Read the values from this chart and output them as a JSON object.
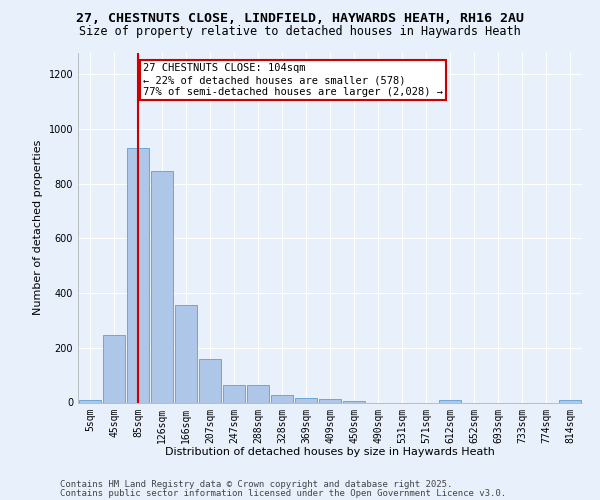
{
  "title1": "27, CHESTNUTS CLOSE, LINDFIELD, HAYWARDS HEATH, RH16 2AU",
  "title2": "Size of property relative to detached houses in Haywards Heath",
  "xlabel": "Distribution of detached houses by size in Haywards Heath",
  "ylabel": "Number of detached properties",
  "bin_labels": [
    "5sqm",
    "45sqm",
    "85sqm",
    "126sqm",
    "166sqm",
    "207sqm",
    "247sqm",
    "288sqm",
    "328sqm",
    "369sqm",
    "409sqm",
    "450sqm",
    "490sqm",
    "531sqm",
    "571sqm",
    "612sqm",
    "652sqm",
    "693sqm",
    "733sqm",
    "774sqm",
    "814sqm"
  ],
  "bar_heights": [
    8,
    248,
    930,
    848,
    358,
    158,
    65,
    65,
    28,
    15,
    12,
    5,
    0,
    0,
    0,
    8,
    0,
    0,
    0,
    0,
    8
  ],
  "bar_color": "#aec6e8",
  "bar_edge_color": "#5a9fd4",
  "red_line_x": 2,
  "annotation_line1": "27 CHESTNUTS CLOSE: 104sqm",
  "annotation_line2": "← 22% of detached houses are smaller (578)",
  "annotation_line3": "77% of semi-detached houses are larger (2,028) →",
  "annotation_box_color": "#ffffff",
  "annotation_box_edge_color": "#cc0000",
  "red_line_color": "#cc0000",
  "ylim": [
    0,
    1280
  ],
  "yticks": [
    0,
    200,
    400,
    600,
    800,
    1000,
    1200
  ],
  "footer1": "Contains HM Land Registry data © Crown copyright and database right 2025.",
  "footer2": "Contains public sector information licensed under the Open Government Licence v3.0.",
  "background_color": "#e8f0fb",
  "plot_bg_color": "#e8f0fb",
  "grid_color": "#ffffff",
  "title_fontsize": 9.5,
  "subtitle_fontsize": 8.5,
  "axis_label_fontsize": 8,
  "tick_fontsize": 7,
  "annotation_fontsize": 7.5,
  "footer_fontsize": 6.5
}
